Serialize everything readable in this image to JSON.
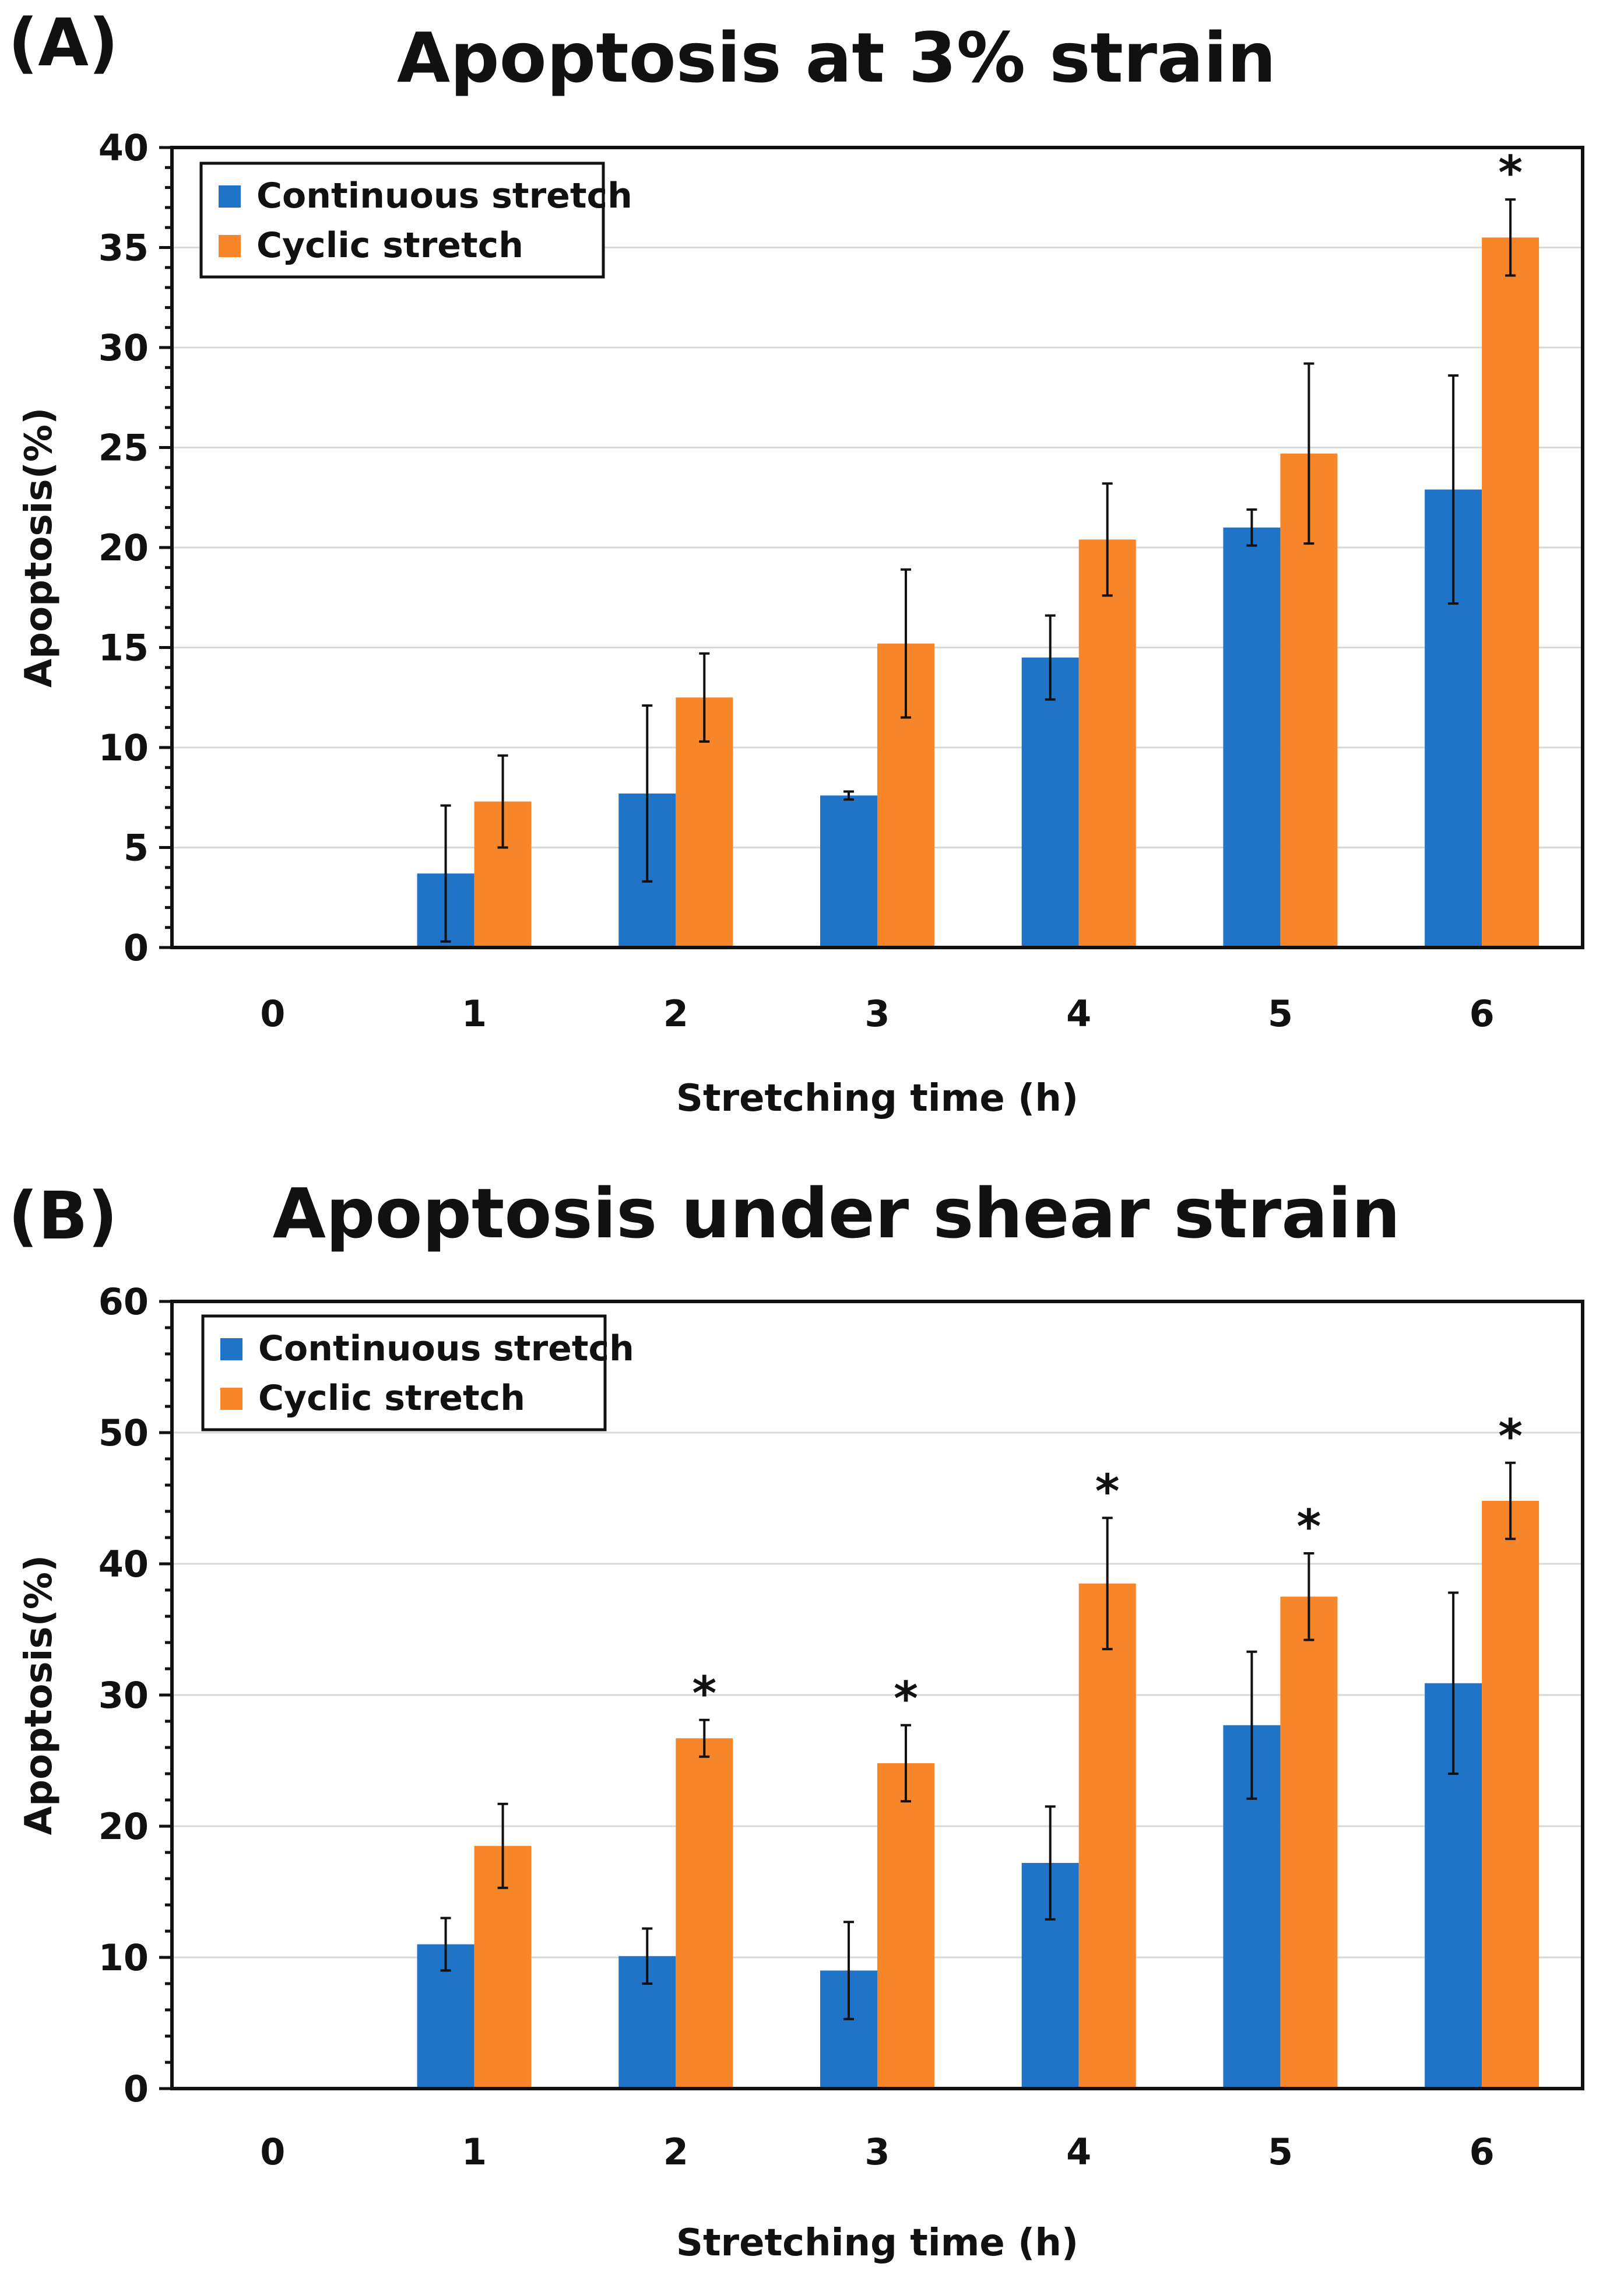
{
  "chart_data": [
    {
      "type": "bar",
      "panel_label": "(A)",
      "title": "Apoptosis at 3% strain",
      "xlabel": "Stretching time (h)",
      "ylabel": "Apoptosis(%)",
      "categories": [
        "0",
        "1",
        "2",
        "3",
        "4",
        "5",
        "6"
      ],
      "ylim": [
        0,
        40
      ],
      "yticks": [
        "0",
        "5",
        "10",
        "15",
        "20",
        "25",
        "30",
        "35",
        "40"
      ],
      "grid": true,
      "legend_position": "top-left",
      "series": [
        {
          "name": "Continuous stretch",
          "color": "#1f74c8",
          "values": [
            0,
            3.7,
            7.7,
            7.6,
            14.5,
            21.0,
            22.9
          ],
          "errors": [
            0,
            3.4,
            4.4,
            0.2,
            2.1,
            0.9,
            5.7
          ]
        },
        {
          "name": "Cyclic stretch",
          "color": "#f7862b",
          "values": [
            0,
            7.3,
            12.5,
            15.2,
            20.4,
            24.7,
            35.5
          ],
          "errors": [
            0,
            2.3,
            2.2,
            3.7,
            2.8,
            4.5,
            1.9
          ]
        }
      ],
      "significance": [
        {
          "category": "6",
          "series": "Cyclic stretch",
          "mark": "*"
        }
      ]
    },
    {
      "type": "bar",
      "panel_label": "(B)",
      "title": "Apoptosis under shear strain",
      "xlabel": "Stretching time (h)",
      "ylabel": "Apoptosis(%)",
      "categories": [
        "0",
        "1",
        "2",
        "3",
        "4",
        "5",
        "6"
      ],
      "ylim": [
        0,
        60
      ],
      "yticks": [
        "0",
        "10",
        "20",
        "30",
        "40",
        "50",
        "60"
      ],
      "grid": true,
      "legend_position": "top-left",
      "series": [
        {
          "name": "Continuous stretch",
          "color": "#1f74c8",
          "values": [
            0,
            11.0,
            10.1,
            9.0,
            17.2,
            27.7,
            30.9
          ],
          "errors": [
            0,
            2.0,
            2.1,
            3.7,
            4.3,
            5.6,
            6.9
          ]
        },
        {
          "name": "Cyclic stretch",
          "color": "#f7862b",
          "values": [
            0,
            18.5,
            26.7,
            24.8,
            38.5,
            37.5,
            44.8
          ],
          "errors": [
            0,
            3.2,
            1.4,
            2.9,
            5.0,
            3.3,
            2.9
          ]
        }
      ],
      "significance": [
        {
          "category": "2",
          "series": "Cyclic stretch",
          "mark": "*"
        },
        {
          "category": "3",
          "series": "Cyclic stretch",
          "mark": "*"
        },
        {
          "category": "4",
          "series": "Cyclic stretch",
          "mark": "*"
        },
        {
          "category": "5",
          "series": "Cyclic stretch",
          "mark": "*"
        },
        {
          "category": "6",
          "series": "Cyclic stretch",
          "mark": "*"
        }
      ]
    }
  ]
}
